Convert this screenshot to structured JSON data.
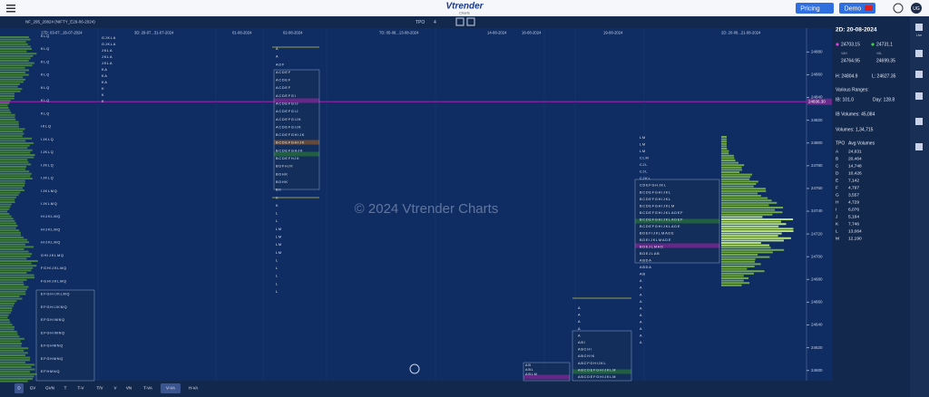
{
  "header": {
    "logo": "Vtrender",
    "logo_sub": "Charts",
    "pricing": "Pricing",
    "demo": "Demo",
    "user": "UG"
  },
  "toolbar": {
    "instrument": "NF_295_20824 (NIFTY_E29-06-2024)",
    "tpo_label": "TPO",
    "tpo_value": "4"
  },
  "watermark": "© 2024 Vtrender Charts",
  "price_line": {
    "label": "24836.30",
    "value": 24836.3
  },
  "price_axis": {
    "ylim": [
      24591,
      24901
    ],
    "ticks": [
      24600,
      24620,
      24640,
      24660,
      24680,
      24700,
      24720,
      24740,
      24760,
      24780,
      24800,
      24820,
      24840,
      24860,
      24880
    ]
  },
  "profiles": [
    {
      "date": "17D: 03-07...26-07-2024",
      "rows": [
        "KLQ",
        "KLQ",
        "KLQ",
        "KLQ",
        "KLQ",
        "KLQ",
        "KLQ",
        "IKLQ",
        "IJKLQ",
        "IJKLQ",
        "IJKLQ",
        "IJKLQ",
        "IJKLMQ",
        "IJKLMQ",
        "HIJKLMQ",
        "HIJKLMQ",
        "HIJKLMQ",
        "GHIJKLMQ",
        "FGHIJKLMQ",
        "FGHIJKLMQ",
        "EFGHIJKLMQ",
        "EFGHIJKMQ",
        "EFGHIMNQ",
        "EFGHIMNQ",
        "EFGHMNQ",
        "EFGHMNQ",
        "EFHMNQ"
      ]
    },
    {
      "date": "3D: 29-07...31-07-2024",
      "rows": [
        "GJKLA",
        "GJKLA",
        "JKLA",
        "JKLA",
        "JKLA",
        "KA",
        "KA",
        "KA",
        "K",
        "K",
        "K"
      ]
    },
    {
      "date": "01-08-2024",
      "rows": []
    },
    {
      "date": "02-08-2024",
      "rows": [
        "A",
        "A",
        "ADF",
        "ACDEF",
        "ACDEF",
        "ACDEF",
        "ACDEFGI",
        "ACDEFGIJ",
        "ACDEFGIJ",
        "ACDEFGIJK",
        "ACDEFGIJK",
        "BCDEFGHIJK",
        "BCDEFGHIJK",
        "BCDEFGHJK",
        "BCDEFHJK",
        "BDFHJK",
        "BDHK",
        "BDHK",
        "BK",
        "K",
        "K",
        "L",
        "L",
        "LM",
        "LM",
        "LM",
        "LM",
        "L",
        "L",
        "L",
        "L",
        "L"
      ]
    },
    {
      "date": "7D: 05-08...13-08-2024",
      "rows": []
    },
    {
      "date": "14-08-2024",
      "rows": []
    },
    {
      "date": "16-08-2024",
      "rows": [
        "AB",
        "ABL",
        "ABLM"
      ]
    },
    {
      "date": "19-08-2024",
      "rows": [
        "A",
        "A",
        "A",
        "A",
        "A",
        "ABI",
        "ABCHI",
        "ABCHIK",
        "ABCFGHIJKL",
        "ABCDEFGHIJKLM",
        "ABCDEFGHIJKLM"
      ]
    },
    {
      "date": "2D: 20-08...21-08-2024",
      "rows": [
        "LM",
        "LM",
        "LM",
        "CLM",
        "CJL",
        "CJL",
        "CJKL",
        "CDEFGHJKL",
        "BCDEFGHIJKL",
        "BCDEFGHIJKL",
        "BCDEFGHIJKLM",
        "BCDEFGHIJKLADEF",
        "BCDEFGHIJKLADEF",
        "BCDEFGHIJKLADE",
        "BDEFIJKLMADE",
        "BDEIJKLMADE",
        "BDEJLMAD",
        "BDEJLAB",
        "ABDA",
        "ABDA",
        "AB",
        "A",
        "A",
        "A",
        "A",
        "A",
        "A",
        "A",
        "A",
        "A",
        "A"
      ]
    }
  ],
  "panel": {
    "title": "2D: 20-08-2024",
    "poc": "24703.15",
    "vpoc": "24731.1",
    "vah_label": "VAH",
    "vah": "24764.95",
    "val_label": "VAL",
    "val": "24699.35",
    "high": "H: 24804.9",
    "low": "L: 24627.35",
    "ranges": "Various Ranges:",
    "ib": "IB: 101.0",
    "day": "Day: 128.8",
    "ib_volumes": "IB Volumes: 45,084",
    "volumes": "Volumes: 1,34,715",
    "table_head": [
      "TPO",
      "Avg Volumes"
    ],
    "table": [
      [
        "A",
        "24,631"
      ],
      [
        "B",
        "20,464"
      ],
      [
        "C",
        "14,748"
      ],
      [
        "D",
        "10,426"
      ],
      [
        "E",
        "7,142"
      ],
      [
        "F",
        "4,797"
      ],
      [
        "G",
        "3,557"
      ],
      [
        "H",
        "4,729"
      ],
      [
        "I",
        "6,076"
      ],
      [
        "J",
        "5,164"
      ],
      [
        "K",
        "7,746"
      ],
      [
        "L",
        "13,064"
      ],
      [
        "M",
        "12,190"
      ]
    ]
  },
  "side_icons": [
    "Live"
  ],
  "bottom": [
    "D",
    "GV",
    "GVN",
    "T",
    "T-V",
    "T/V",
    "V",
    "VN",
    "T-VA",
    "V-VA",
    "H-VA"
  ]
}
